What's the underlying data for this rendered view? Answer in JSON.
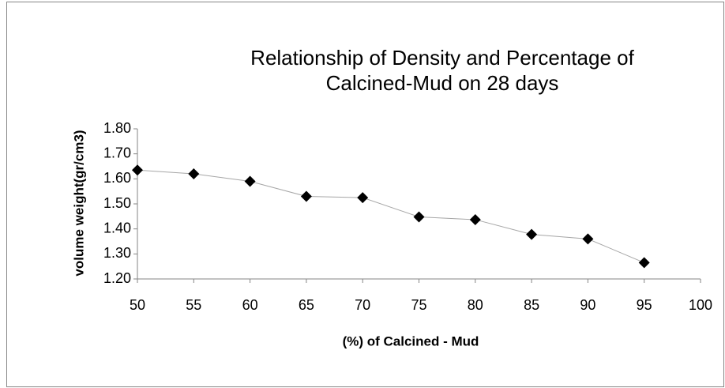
{
  "chart_data": {
    "type": "line",
    "title": [
      "Relationship of  Density and Percentage of",
      "Calcined-Mud on 28 days"
    ],
    "x_label": "(%)  of Calcined - Mud",
    "y_label": "volume weight(gr/cm3)",
    "x": [
      50,
      55,
      60,
      65,
      70,
      75,
      80,
      85,
      90,
      95
    ],
    "series": [
      {
        "color": "#000000",
        "line_color": "#a6a6a6",
        "marker": "diamond",
        "values": [
          1.635,
          1.62,
          1.59,
          1.53,
          1.525,
          1.448,
          1.437,
          1.378,
          1.36,
          1.265
        ]
      }
    ],
    "xlim": [
      50,
      100
    ],
    "xticks": [
      50,
      55,
      60,
      65,
      70,
      75,
      80,
      85,
      90,
      95,
      100
    ],
    "ylim": [
      1.2,
      1.8
    ],
    "yticks": [
      {
        "value": 1.2,
        "label": "1.20"
      },
      {
        "value": 1.3,
        "label": "1.30"
      },
      {
        "value": 1.4,
        "label": "1.40"
      },
      {
        "value": 1.5,
        "label": "1.50"
      },
      {
        "value": 1.6,
        "label": "1.60"
      },
      {
        "value": 1.7,
        "label": "1.70"
      },
      {
        "value": 1.8,
        "label": "1.80"
      }
    ],
    "grid": false
  }
}
